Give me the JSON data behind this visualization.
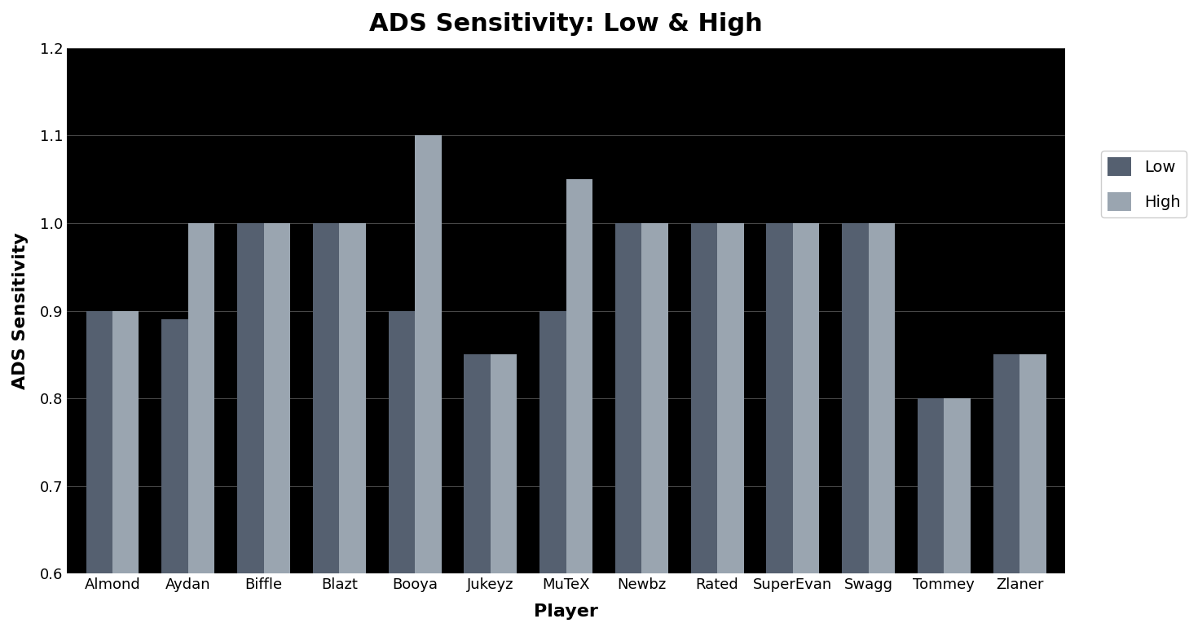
{
  "title": "ADS Sensitivity: Low & High",
  "xlabel": "Player",
  "ylabel": "ADS Sensitivity",
  "plot_background_color": "#000000",
  "figure_background_color": "#ffffff",
  "text_color_outside": "#000000",
  "text_color_title": "#000000",
  "grid_color": "#555555",
  "ylim": [
    0.6,
    1.2
  ],
  "yticks": [
    0.6,
    0.7,
    0.8,
    0.9,
    1.0,
    1.1,
    1.2
  ],
  "bar_color_low": "#556070",
  "bar_color_high": "#9aa5b0",
  "players": [
    "Almond",
    "Aydan",
    "Biffle",
    "Blazt",
    "Booya",
    "Jukeyz",
    "MuTeX",
    "Newbz",
    "Rated",
    "SuperEvan",
    "Swagg",
    "Tommey",
    "Zlaner"
  ],
  "low": [
    0.9,
    0.89,
    1.0,
    1.0,
    0.9,
    0.85,
    0.9,
    1.0,
    1.0,
    1.0,
    1.0,
    0.8,
    0.85
  ],
  "high": [
    0.9,
    1.0,
    1.0,
    1.0,
    1.1,
    0.85,
    1.05,
    1.0,
    1.0,
    1.0,
    1.0,
    0.8,
    0.85
  ],
  "legend_labels": [
    "Low",
    "High"
  ],
  "title_fontsize": 22,
  "axis_label_fontsize": 16,
  "tick_fontsize": 13,
  "legend_fontsize": 14,
  "bar_width": 0.35,
  "legend_facecolor": "#ffffff",
  "legend_edgecolor": "#cccccc"
}
